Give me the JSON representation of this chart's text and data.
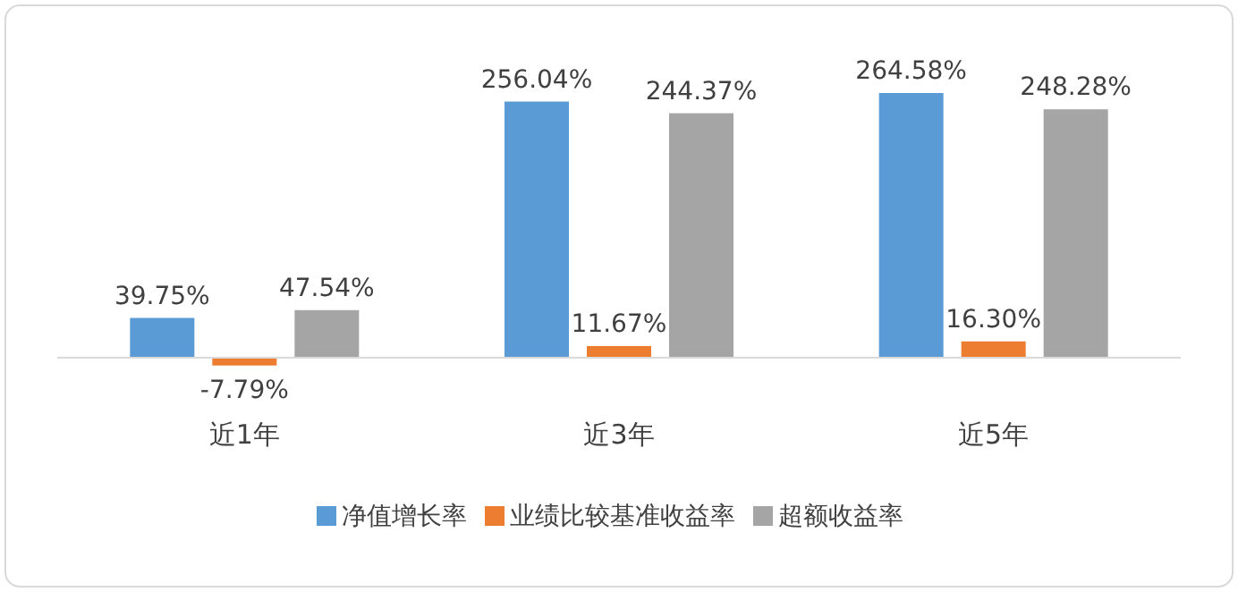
{
  "chart_data": {
    "type": "bar",
    "categories": [
      "近1年",
      "近3年",
      "近5年"
    ],
    "series": [
      {
        "name": "净值增长率",
        "color": "#5b9bd5",
        "values": [
          39.75,
          256.04,
          264.58
        ],
        "value_labels": [
          "39.75%",
          "256.04%",
          "264.58%"
        ]
      },
      {
        "name": "业绩比较基准收益率",
        "color": "#ed7d31",
        "values": [
          -7.79,
          11.67,
          16.3
        ],
        "value_labels": [
          "-7.79%",
          "11.67%",
          "16.30%"
        ]
      },
      {
        "name": "超额收益率",
        "color": "#a5a5a5",
        "values": [
          47.54,
          244.37,
          248.28
        ],
        "value_labels": [
          "47.54%",
          "244.37%",
          "248.28%"
        ]
      }
    ],
    "legend": "bottom"
  }
}
